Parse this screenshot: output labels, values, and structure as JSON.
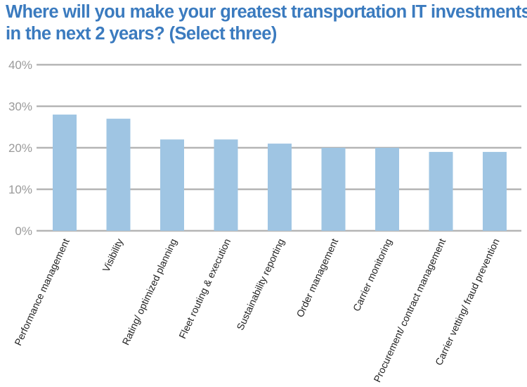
{
  "title_lines": [
    "Where will you make your greatest transportation IT investments",
    "in the next 2 years? (Select three)"
  ],
  "colors": {
    "title": "#3b7bbf",
    "bar": "#9fc5e3",
    "grid": "#b5b5b5",
    "tick_text": "#9a9a9a"
  },
  "chart_data": {
    "type": "bar",
    "title": "Where will you make your greatest transportation IT investments in the next 2 years? (Select three)",
    "categories": [
      "Performance management",
      "Visibility",
      "Rating/ optimized planning",
      "Fleet routing & execution",
      "Sustainability reporting",
      "Order management",
      "Carrier monitoring",
      "Procurement/ contract management",
      "Carrier vetting/ fraud prevention"
    ],
    "values": [
      28,
      27,
      22,
      22,
      21,
      20,
      20,
      19,
      19
    ],
    "value_unit": "%",
    "ylim": [
      0,
      40
    ],
    "yticks": [
      "0%",
      "10%",
      "20%",
      "30%",
      "40%"
    ],
    "grid": true,
    "xlabel": "",
    "ylabel": ""
  }
}
